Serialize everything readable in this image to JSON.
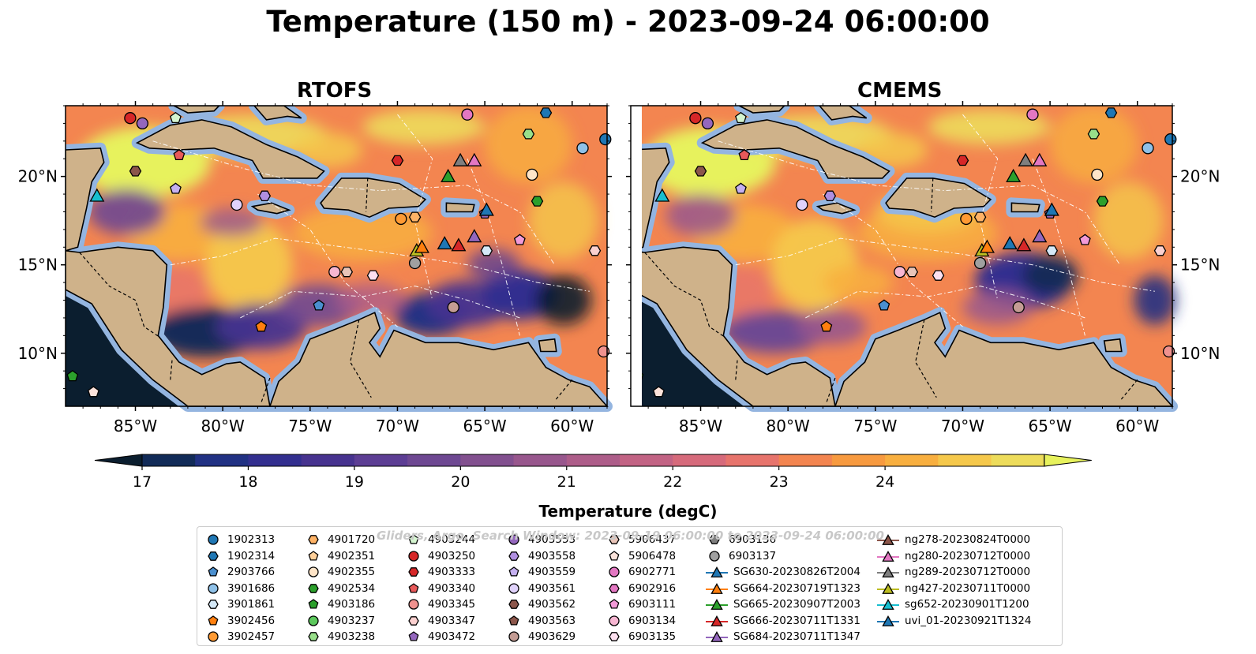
{
  "title": "Temperature (150 m) - 2023-09-24 06:00:00",
  "panels": [
    {
      "title": "RTOFS"
    },
    {
      "title": "CMEMS"
    }
  ],
  "axes": {
    "lon_ticks": [
      "85°W",
      "80°W",
      "75°W",
      "70°W",
      "65°W",
      "60°W"
    ],
    "lat_ticks": [
      "20°N",
      "15°N",
      "10°N"
    ]
  },
  "colorbar": {
    "label": "Temperature (degC)",
    "ticks": [
      "17",
      "18",
      "19",
      "20",
      "21",
      "22",
      "23",
      "24"
    ],
    "colors": [
      "#0b1e2f",
      "#122b58",
      "#213183",
      "#332f8f",
      "#47338f",
      "#5d3e94",
      "#6e4892",
      "#82508f",
      "#98578d",
      "#ad5d89",
      "#c26384",
      "#d66a7b",
      "#e7746c",
      "#f38550",
      "#f79a3f",
      "#f8af3f",
      "#f5c84b",
      "#eddc5b",
      "#e7f25d"
    ],
    "land_color": "#cfb28a",
    "shelf_color": "#94b5e0"
  },
  "watermark": "Gliders, Argo, Search Window: 2023-09-19 06:00:00 to 2023-09-24 06:00:00",
  "legend": [
    {
      "label": "1902313",
      "marker": "circle",
      "color": "#1f77b4"
    },
    {
      "label": "1902314",
      "marker": "hexagon",
      "color": "#1f77b4"
    },
    {
      "label": "2903766",
      "marker": "pentagon",
      "color": "#4a8fcf"
    },
    {
      "label": "3901686",
      "marker": "circle",
      "color": "#8fc1e8"
    },
    {
      "label": "3901861",
      "marker": "hexagon",
      "color": "#d4e8f7"
    },
    {
      "label": "3902456",
      "marker": "pentagon",
      "color": "#ff7f0e"
    },
    {
      "label": "3902457",
      "marker": "circle",
      "color": "#ff9a33"
    },
    {
      "label": "4901720",
      "marker": "hexagon",
      "color": "#ffb366"
    },
    {
      "label": "4902351",
      "marker": "pentagon",
      "color": "#ffcf99"
    },
    {
      "label": "4902355",
      "marker": "circle",
      "color": "#ffe5c8"
    },
    {
      "label": "4902534",
      "marker": "hexagon",
      "color": "#2ca02c"
    },
    {
      "label": "4903186",
      "marker": "pentagon",
      "color": "#2ca02c"
    },
    {
      "label": "4903237",
      "marker": "circle",
      "color": "#5cc85c"
    },
    {
      "label": "4903238",
      "marker": "hexagon",
      "color": "#98df8a"
    },
    {
      "label": "4903244",
      "marker": "pentagon",
      "color": "#d5f5d0"
    },
    {
      "label": "4903250",
      "marker": "circle",
      "color": "#d62728"
    },
    {
      "label": "4903333",
      "marker": "hexagon",
      "color": "#d62728"
    },
    {
      "label": "4903340",
      "marker": "pentagon",
      "color": "#e8595a"
    },
    {
      "label": "4903345",
      "marker": "circle",
      "color": "#f0928f"
    },
    {
      "label": "4903347",
      "marker": "hexagon",
      "color": "#fbd0cf"
    },
    {
      "label": "4903472",
      "marker": "pentagon",
      "color": "#9467bd"
    },
    {
      "label": "4903553",
      "marker": "circle",
      "color": "#9467bd"
    },
    {
      "label": "4903558",
      "marker": "hexagon",
      "color": "#b08fe0"
    },
    {
      "label": "4903559",
      "marker": "pentagon",
      "color": "#c5b0f0"
    },
    {
      "label": "4903561",
      "marker": "circle",
      "color": "#e0d2fb"
    },
    {
      "label": "4903562",
      "marker": "hexagon",
      "color": "#8c564b"
    },
    {
      "label": "4903563",
      "marker": "pentagon",
      "color": "#8c564b"
    },
    {
      "label": "4903629",
      "marker": "circle",
      "color": "#c49c94"
    },
    {
      "label": "5906437",
      "marker": "hexagon",
      "color": "#e8c4b8"
    },
    {
      "label": "5906478",
      "marker": "pentagon",
      "color": "#fbe2da"
    },
    {
      "label": "6902771",
      "marker": "circle",
      "color": "#e377c2"
    },
    {
      "label": "6902916",
      "marker": "hexagon",
      "color": "#e377c2"
    },
    {
      "label": "6903111",
      "marker": "pentagon",
      "color": "#f29ad8"
    },
    {
      "label": "6903134",
      "marker": "circle",
      "color": "#f7b6d2"
    },
    {
      "label": "6903135",
      "marker": "hexagon",
      "color": "#fde0ef"
    },
    {
      "label": "6903136",
      "marker": "hexagon",
      "color": "#7f7f7f"
    },
    {
      "label": "6903137",
      "marker": "circle",
      "color": "#a0a0a0"
    },
    {
      "label": "SG630-20230826T2004",
      "marker": "triangle-line",
      "color": "#1f77b4"
    },
    {
      "label": "SG664-20230719T1323",
      "marker": "triangle-line",
      "color": "#ff7f0e"
    },
    {
      "label": "SG665-20230907T2003",
      "marker": "triangle-line",
      "color": "#2ca02c"
    },
    {
      "label": "SG666-20230711T1331",
      "marker": "triangle-line",
      "color": "#d62728"
    },
    {
      "label": "SG684-20230711T1347",
      "marker": "triangle-line",
      "color": "#9467bd"
    },
    {
      "label": "ng278-20230824T0000",
      "marker": "triangle-line",
      "color": "#8c564b"
    },
    {
      "label": "ng280-20230712T0000",
      "marker": "triangle-line",
      "color": "#e377c2"
    },
    {
      "label": "ng289-20230712T0000",
      "marker": "triangle-line",
      "color": "#7f7f7f"
    },
    {
      "label": "ng427-20230711T0000",
      "marker": "triangle-line",
      "color": "#bcbd22"
    },
    {
      "label": "sg652-20230901T1200",
      "marker": "triangle-line",
      "color": "#17becf"
    },
    {
      "label": "uvi_01-20230921T1324",
      "marker": "triangle-line",
      "color": "#1f77b4"
    }
  ],
  "platforms": [
    {
      "label": "4903250",
      "lon": -85.3,
      "lat": 23.3
    },
    {
      "label": "4903553",
      "lon": -84.6,
      "lat": 23.0
    },
    {
      "label": "4903244",
      "lon": -82.7,
      "lat": 23.3
    },
    {
      "label": "4903340",
      "lon": -82.5,
      "lat": 21.2
    },
    {
      "label": "4903562",
      "lon": -85.0,
      "lat": 20.3
    },
    {
      "label": "4903559",
      "lon": -82.7,
      "lat": 19.3
    },
    {
      "label": "4903558",
      "lon": -77.6,
      "lat": 18.9
    },
    {
      "label": "4903561",
      "lon": -79.2,
      "lat": 18.4
    },
    {
      "label": "sg652-20230901T1200",
      "lon": -87.2,
      "lat": 18.9
    },
    {
      "label": "2903766",
      "lon": -74.5,
      "lat": 12.7
    },
    {
      "label": "3902456",
      "lon": -77.8,
      "lat": 11.5
    },
    {
      "label": "4903186",
      "lon": -88.6,
      "lat": 8.7
    },
    {
      "label": "5906478",
      "lon": -87.4,
      "lat": 7.8
    },
    {
      "label": "6903134",
      "lon": -73.6,
      "lat": 14.6
    },
    {
      "label": "5906437",
      "lon": -72.9,
      "lat": 14.6
    },
    {
      "label": "6903135",
      "lon": -71.4,
      "lat": 14.4
    },
    {
      "label": "6903137",
      "lon": -69.0,
      "lat": 15.1
    },
    {
      "label": "4903629",
      "lon": -66.8,
      "lat": 12.6
    },
    {
      "label": "3902457",
      "lon": -69.8,
      "lat": 17.6
    },
    {
      "label": "4901720",
      "lon": -69.0,
      "lat": 17.7
    },
    {
      "label": "ng427-20230711T0000",
      "lon": -68.9,
      "lat": 15.8
    },
    {
      "label": "SG664-20230719T1323",
      "lon": -68.6,
      "lat": 16.0
    },
    {
      "label": "SG630-20230826T2004",
      "lon": -67.3,
      "lat": 16.2
    },
    {
      "label": "SG666-20230711T1331",
      "lon": -66.5,
      "lat": 16.1
    },
    {
      "label": "SG684-20230711T1347",
      "lon": -65.6,
      "lat": 16.6
    },
    {
      "label": "4903472",
      "lon": -65.0,
      "lat": 17.9
    },
    {
      "label": "uvi_01-20230921T1324",
      "lon": -64.9,
      "lat": 18.1
    },
    {
      "label": "6903111",
      "lon": -63.0,
      "lat": 16.4
    },
    {
      "label": "3901861",
      "lon": -64.9,
      "lat": 15.8
    },
    {
      "label": "4902355",
      "lon": -62.3,
      "lat": 20.1
    },
    {
      "label": "4902534",
      "lon": -62.0,
      "lat": 18.6
    },
    {
      "label": "4903333",
      "lon": -70.0,
      "lat": 20.9
    },
    {
      "label": "SG665-20230907T2003",
      "lon": -67.1,
      "lat": 20.0
    },
    {
      "label": "ng289-20230712T0000",
      "lon": -66.4,
      "lat": 20.9
    },
    {
      "label": "ng280-20230712T0000",
      "lon": -65.6,
      "lat": 20.9
    },
    {
      "label": "6902771",
      "lon": -66.0,
      "lat": 23.5
    },
    {
      "label": "4903238",
      "lon": -62.5,
      "lat": 22.4
    },
    {
      "label": "1902314",
      "lon": -61.5,
      "lat": 23.6
    },
    {
      "label": "3901686",
      "lon": -59.4,
      "lat": 21.6
    },
    {
      "label": "1902313",
      "lon": -58.1,
      "lat": 22.1
    },
    {
      "label": "4903347",
      "lon": -58.7,
      "lat": 15.8
    },
    {
      "label": "4903345",
      "lon": -58.2,
      "lat": 10.1
    }
  ]
}
